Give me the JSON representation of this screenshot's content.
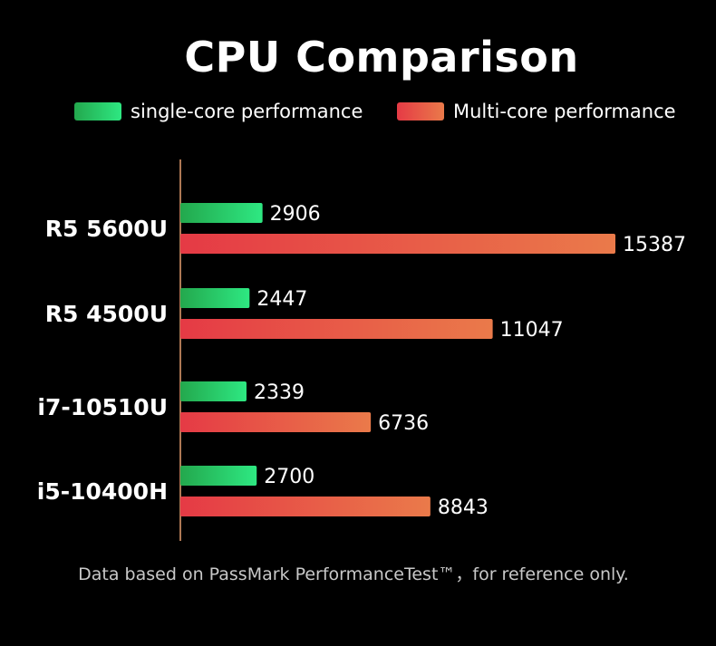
{
  "chart_data": {
    "type": "bar",
    "orientation": "horizontal",
    "title": "CPU Comparison",
    "categories": [
      "R5 5600U",
      "R5 4500U",
      "i7-10510U",
      "i5-10400H"
    ],
    "series": [
      {
        "name": "single-core performance",
        "values": [
          2906,
          2447,
          2339,
          2700
        ],
        "labels": [
          "2906",
          "2447",
          "2339",
          "2700"
        ],
        "gradient": [
          "#23a84d",
          "#2ee882"
        ]
      },
      {
        "name": "Multi-core performance",
        "values": [
          15387,
          11047,
          6736,
          8843
        ],
        "labels": [
          "15387",
          "11047",
          "6736",
          "8843"
        ],
        "gradient": [
          "#e53a45",
          "#ea7a4a"
        ]
      }
    ],
    "legend_position": "top",
    "grid": false,
    "axis_line_color": "#e8a070",
    "footnote": "Data based on PassMark PerformanceTest™，for reference only."
  }
}
